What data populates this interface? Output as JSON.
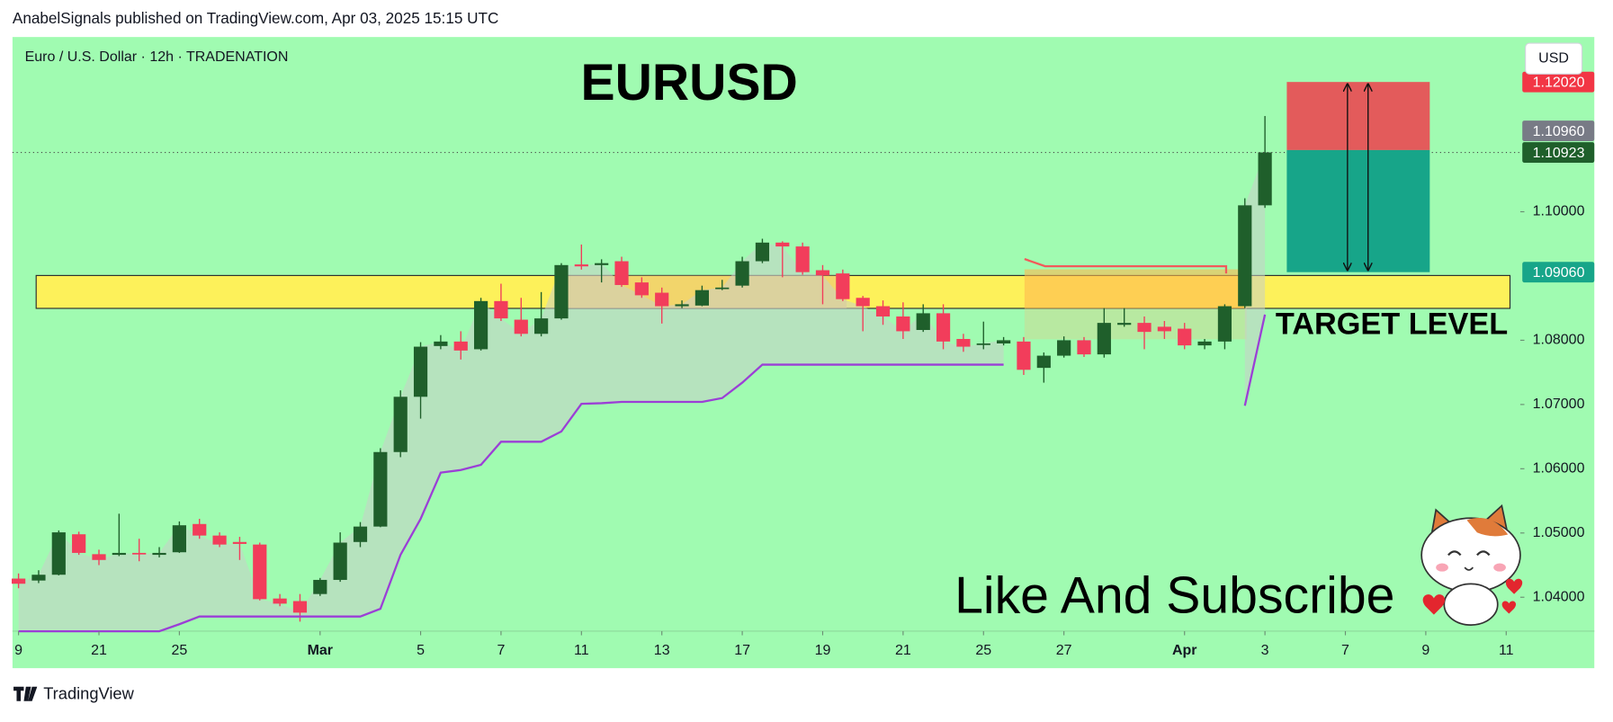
{
  "header": "AnabelSignals published on TradingView.com, Apr 03, 2025 15:15 UTC",
  "footer": "TradingView",
  "chart_data": {
    "type": "candlestick",
    "title": "EURUSD",
    "symbol": "Euro / U.S. Dollar · 12h · TRADENATION",
    "currency": "USD",
    "annotations": [
      "TARGET LEVEL",
      "Like And Subscribe"
    ],
    "xlim": [
      -0.3,
      74.7
    ],
    "xticks": [
      {
        "value": 0,
        "label": "9"
      },
      {
        "value": 4,
        "label": "21"
      },
      {
        "value": 8,
        "label": "25"
      },
      {
        "value": 15,
        "label": "Mar"
      },
      {
        "value": 20,
        "label": "5"
      },
      {
        "value": 24,
        "label": "7"
      },
      {
        "value": 28,
        "label": "11"
      },
      {
        "value": 32,
        "label": "13"
      },
      {
        "value": 36,
        "label": "17"
      },
      {
        "value": 40,
        "label": "19"
      },
      {
        "value": 44,
        "label": "21"
      },
      {
        "value": 48,
        "label": "25"
      },
      {
        "value": 52,
        "label": "27"
      },
      {
        "value": 58,
        "label": "Apr"
      },
      {
        "value": 62,
        "label": "3"
      },
      {
        "value": 66,
        "label": "7"
      },
      {
        "value": 70,
        "label": "9"
      },
      {
        "value": 74,
        "label": "11"
      }
    ],
    "ylim": [
      1.03472,
      1.1272
    ],
    "yticks": [
      {
        "value": 1.04,
        "label": "1.04000"
      },
      {
        "value": 1.05,
        "label": "1.05000"
      },
      {
        "value": 1.06,
        "label": "1.06000"
      },
      {
        "value": 1.07,
        "label": "1.07000"
      },
      {
        "value": 1.08,
        "label": "1.08000"
      },
      {
        "value": 1.1,
        "label": "1.10000"
      }
    ],
    "grid": false,
    "up_color": "#1f5f2b",
    "down_color": "#f23d5b",
    "candles": {
      "open": [
        1.0429,
        1.0426,
        1.0435,
        1.0498,
        1.0467,
        1.0466,
        1.0469,
        1.0466,
        1.047,
        1.0514,
        1.0496,
        1.0486,
        1.0482,
        1.0398,
        1.0394,
        1.0405,
        1.0427,
        1.0486,
        1.051,
        1.0626,
        1.0712,
        1.0791,
        1.0798,
        1.0786,
        1.0861,
        1.0832,
        1.081,
        1.0834,
        1.0918,
        1.0917,
        1.0923,
        1.089,
        1.0874,
        1.0853,
        1.0854,
        1.088,
        1.0885,
        1.0923,
        1.0952,
        1.0946,
        1.0909,
        1.0904,
        1.0866,
        1.0853,
        1.0837,
        1.0816,
        1.0842,
        1.0802,
        1.0794,
        1.0795,
        1.0798,
        1.0757,
        1.0776,
        1.08,
        1.0778,
        1.0824,
        1.0827,
        1.0821,
        1.0818,
        1.0792,
        1.0798,
        1.0853,
        1.101
      ],
      "high": [
        1.0437,
        1.0442,
        1.0504,
        1.0502,
        1.0474,
        1.053,
        1.0491,
        1.0478,
        1.0518,
        1.0522,
        1.0501,
        1.0494,
        1.0485,
        1.0405,
        1.0405,
        1.043,
        1.0501,
        1.0517,
        1.0632,
        1.0722,
        1.0797,
        1.0808,
        1.0814,
        1.0866,
        1.0888,
        1.0866,
        1.0875,
        1.092,
        1.0949,
        1.0926,
        1.093,
        1.0898,
        1.0882,
        1.0862,
        1.0885,
        1.0894,
        1.093,
        1.0958,
        1.0954,
        1.0952,
        1.0917,
        1.091,
        1.0869,
        1.0862,
        1.0859,
        1.0856,
        1.0856,
        1.081,
        1.0829,
        1.0805,
        1.0805,
        1.0781,
        1.0806,
        1.0805,
        1.085,
        1.085,
        1.0837,
        1.083,
        1.0827,
        1.0802,
        1.0856,
        1.1021,
        1.1149
      ],
      "low": [
        1.0414,
        1.0422,
        1.0434,
        1.0466,
        1.045,
        1.0464,
        1.0456,
        1.0462,
        1.0469,
        1.0491,
        1.0478,
        1.0458,
        1.0395,
        1.0386,
        1.0362,
        1.0402,
        1.0424,
        1.0478,
        1.0509,
        1.0618,
        1.0678,
        1.0786,
        1.077,
        1.0784,
        1.083,
        1.0806,
        1.0806,
        1.0832,
        1.091,
        1.089,
        1.0883,
        1.0866,
        1.0826,
        1.085,
        1.0853,
        1.0878,
        1.0882,
        1.092,
        1.0898,
        1.0902,
        1.0856,
        1.0861,
        1.0814,
        1.0824,
        1.0802,
        1.0813,
        1.0786,
        1.0782,
        1.0786,
        1.0792,
        1.0746,
        1.0734,
        1.0773,
        1.0774,
        1.0773,
        1.0821,
        1.0786,
        1.0802,
        1.0786,
        1.0786,
        1.0786,
        1.085,
        1.1006
      ],
      "close": [
        1.0421,
        1.0435,
        1.0501,
        1.0469,
        1.0458,
        1.0469,
        1.0467,
        1.0469,
        1.0512,
        1.0496,
        1.0482,
        1.0483,
        1.0397,
        1.039,
        1.0376,
        1.0427,
        1.0485,
        1.051,
        1.0626,
        1.0712,
        1.079,
        1.0798,
        1.0784,
        1.0861,
        1.0834,
        1.081,
        1.0834,
        1.0917,
        1.0915,
        1.092,
        1.0886,
        1.087,
        1.0853,
        1.0856,
        1.0878,
        1.0882,
        1.0923,
        1.0952,
        1.0946,
        1.0906,
        1.0901,
        1.0864,
        1.0853,
        1.0837,
        1.0814,
        1.0842,
        1.0798,
        1.079,
        1.0795,
        1.08,
        1.0754,
        1.0776,
        1.08,
        1.0778,
        1.0827,
        1.0827,
        1.0813,
        1.0814,
        1.0792,
        1.0798,
        1.0853,
        1.101,
        1.10923
      ]
    },
    "trail": {
      "color": "#9b3fd6",
      "values": [
        1.0347,
        1.0347,
        1.0347,
        1.0347,
        1.0347,
        1.0347,
        1.0347,
        1.0347,
        1.0358,
        1.037,
        1.037,
        1.037,
        1.037,
        1.037,
        1.037,
        1.037,
        1.037,
        1.037,
        1.0382,
        1.0466,
        1.0522,
        1.0594,
        1.0598,
        1.0606,
        1.0642,
        1.0642,
        1.0642,
        1.0658,
        1.0701,
        1.0702,
        1.0704,
        1.0704,
        1.0704,
        1.0704,
        1.0704,
        1.071,
        1.0734,
        1.0762,
        1.0762,
        1.0762,
        1.0762,
        1.0762,
        1.0762,
        1.0762,
        1.0762,
        1.0762,
        1.0762,
        1.0762,
        1.0762,
        1.0762,
        null,
        null,
        null,
        null,
        null,
        null,
        null,
        null,
        null,
        null,
        null,
        1.0698,
        1.084
      ]
    },
    "last_price": {
      "value": 1.10923,
      "label": "1.10923",
      "color": "#1f5f2b"
    },
    "price_badges": [
      {
        "value": 1.1202,
        "label": "1.12020",
        "color": "#f23645"
      },
      {
        "value": 1.1096,
        "label": "1.10960",
        "color": "#787b86"
      },
      {
        "value": 1.0906,
        "label": "1.09060",
        "color": "#17a589"
      }
    ]
  }
}
